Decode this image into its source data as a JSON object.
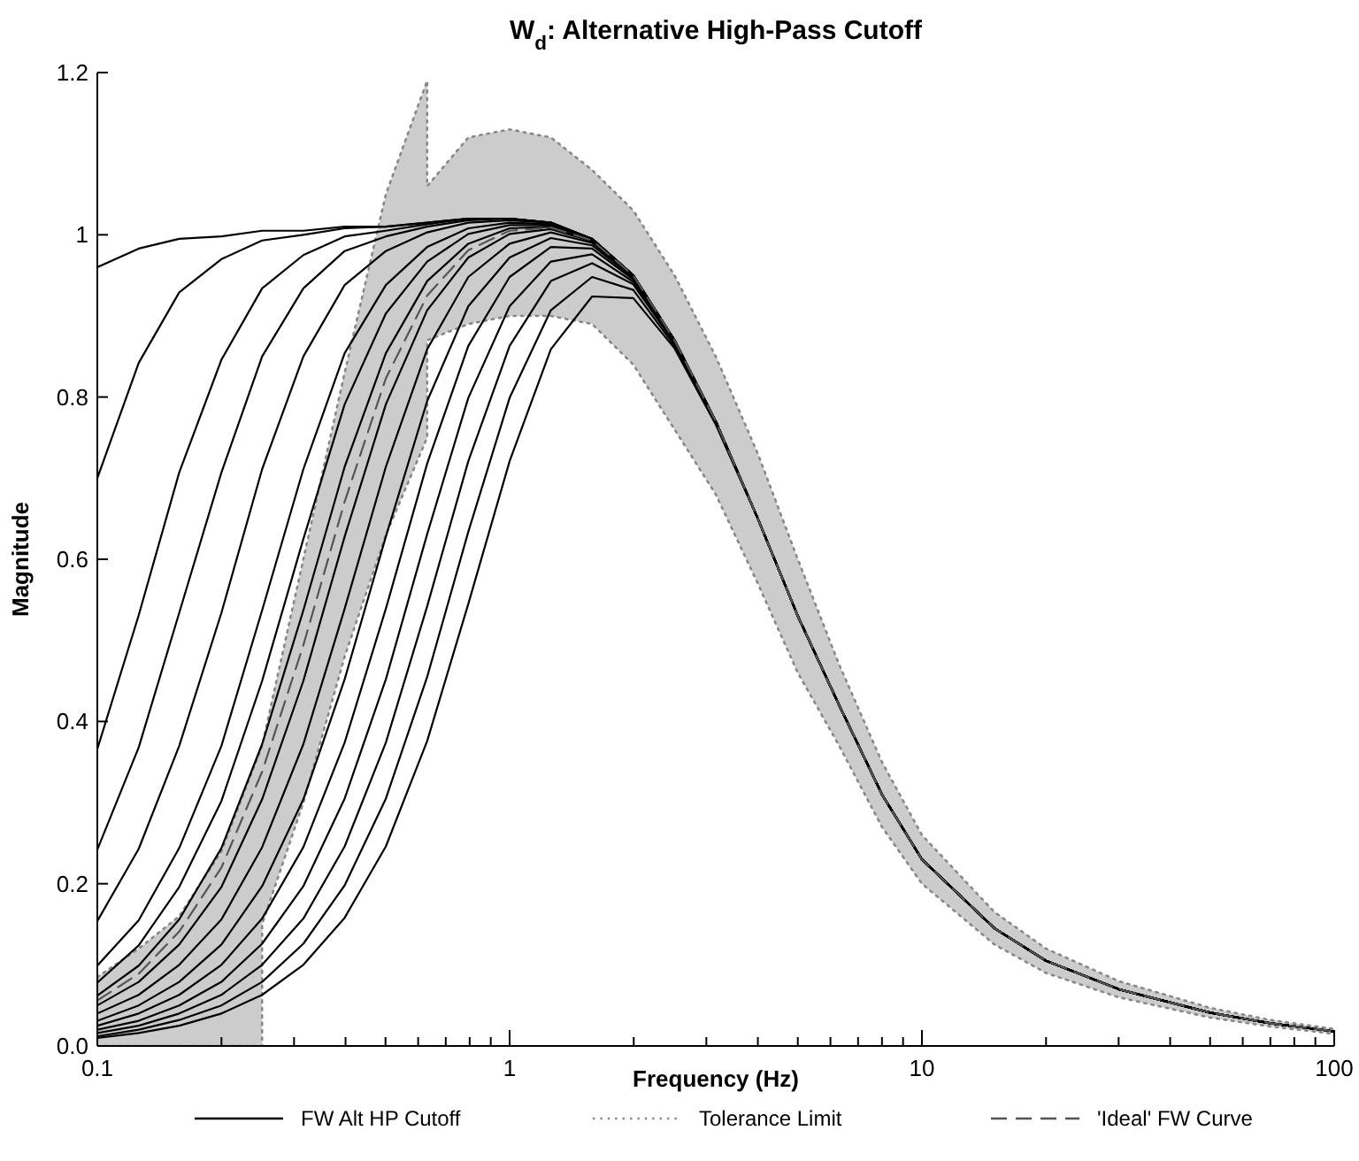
{
  "chart_data": {
    "type": "line",
    "title": "W$_{d}$: Alternative High-Pass Cutoff",
    "xlabel": "Frequency (Hz)",
    "ylabel": "Magnitude",
    "log": "x",
    "legend": "bottom",
    "grid": false,
    "xlim": [
      0.1,
      100
    ],
    "ylim": [
      0,
      1.2
    ],
    "xticks": [
      0.1,
      {
        "value": 0.2,
        "label": null
      },
      {
        "value": 0.3,
        "label": null
      },
      {
        "value": 0.4,
        "label": null
      },
      {
        "value": 0.5,
        "label": null
      },
      {
        "value": 0.6,
        "label": null
      },
      {
        "value": 0.7,
        "label": null
      },
      {
        "value": 0.8,
        "label": null
      },
      {
        "value": 0.9,
        "label": null
      },
      1,
      {
        "value": 2,
        "label": null
      },
      {
        "value": 3,
        "label": null
      },
      {
        "value": 4,
        "label": null
      },
      {
        "value": 5,
        "label": null
      },
      {
        "value": 6,
        "label": null
      },
      {
        "value": 7,
        "label": null
      },
      {
        "value": 8,
        "label": null
      },
      {
        "value": 9,
        "label": null
      },
      10,
      {
        "value": 20,
        "label": null
      },
      {
        "value": 30,
        "label": null
      },
      {
        "value": 40,
        "label": null
      },
      {
        "value": 50,
        "label": null
      },
      {
        "value": 60,
        "label": null
      },
      {
        "value": 70,
        "label": null
      },
      {
        "value": 80,
        "label": null
      },
      {
        "value": 90,
        "label": null
      },
      100
    ],
    "yticks": [
      {
        "value": 0,
        "label": "0.0"
      },
      0.2,
      0.4,
      0.6,
      0.8,
      1,
      1.2
    ],
    "x": [
      0.1,
      0.126,
      0.158,
      0.2,
      0.251,
      0.316,
      0.398,
      0.501,
      0.631,
      0.794,
      1,
      1.259,
      1.585,
      1.995,
      2.512,
      3.162,
      4,
      5,
      6.3,
      8,
      10,
      15,
      20,
      30,
      50,
      70,
      100
    ],
    "series": [
      {
        "name": "FW Alt HP Cutoff",
        "color": "#000000",
        "line_style": "solid",
        "values": [
          0.96,
          0.983,
          0.995,
          0.998,
          1.005,
          1.005,
          1.01,
          1.01,
          1.015,
          1.02,
          1.02,
          1.015,
          0.995,
          0.95,
          0.87,
          0.77,
          0.65,
          0.53,
          0.42,
          0.31,
          0.23,
          0.145,
          0.105,
          0.07,
          0.041,
          0.028,
          0.018
        ]
      },
      {
        "color": "#000000",
        "line_style": "solid",
        "values": [
          0.7,
          0.842,
          0.929,
          0.97,
          0.993,
          1.0,
          1.008,
          1.01,
          1.015,
          1.02,
          1.02,
          1.015,
          0.995,
          0.95,
          0.87,
          0.77,
          0.65,
          0.53,
          0.42,
          0.31,
          0.23,
          0.145,
          0.105,
          0.07,
          0.041,
          0.028,
          0.018
        ]
      },
      {
        "color": "#000000",
        "line_style": "solid",
        "values": [
          0.366,
          0.531,
          0.707,
          0.846,
          0.934,
          0.975,
          0.998,
          1.005,
          1.013,
          1.02,
          1.02,
          1.015,
          0.995,
          0.95,
          0.87,
          0.77,
          0.65,
          0.53,
          0.42,
          0.31,
          0.23,
          0.145,
          0.105,
          0.07,
          0.041,
          0.028,
          0.018
        ]
      },
      {
        "color": "#000000",
        "line_style": "solid",
        "values": [
          0.242,
          0.368,
          0.534,
          0.707,
          0.85,
          0.934,
          0.98,
          0.998,
          1.01,
          1.018,
          1.02,
          1.015,
          0.995,
          0.95,
          0.87,
          0.77,
          0.65,
          0.53,
          0.42,
          0.31,
          0.23,
          0.145,
          0.105,
          0.07,
          0.041,
          0.028,
          0.018
        ]
      },
      {
        "color": "#000000",
        "line_style": "solid",
        "values": [
          0.154,
          0.243,
          0.37,
          0.534,
          0.711,
          0.85,
          0.938,
          0.98,
          1.003,
          1.015,
          1.018,
          1.015,
          0.995,
          0.95,
          0.87,
          0.77,
          0.65,
          0.53,
          0.42,
          0.31,
          0.23,
          0.145,
          0.105,
          0.07,
          0.041,
          0.028,
          0.018
        ]
      },
      {
        "color": "#000000",
        "line_style": "solid",
        "values": [
          0.099,
          0.155,
          0.244,
          0.37,
          0.537,
          0.711,
          0.854,
          0.938,
          0.985,
          1.008,
          1.015,
          1.013,
          0.995,
          0.95,
          0.87,
          0.77,
          0.65,
          0.53,
          0.42,
          0.31,
          0.23,
          0.145,
          0.105,
          0.07,
          0.041,
          0.028,
          0.018
        ]
      },
      {
        "color": "#000000",
        "line_style": "solid",
        "values": [
          0.078,
          0.124,
          0.196,
          0.302,
          0.45,
          0.625,
          0.791,
          0.903,
          0.967,
          1.001,
          1.012,
          1.012,
          0.995,
          0.95,
          0.87,
          0.77,
          0.65,
          0.53,
          0.42,
          0.31,
          0.23,
          0.145,
          0.105,
          0.07,
          0.041,
          0.028,
          0.018
        ]
      },
      {
        "color": "#000000",
        "line_style": "solid",
        "values": [
          0.062,
          0.099,
          0.156,
          0.244,
          0.372,
          0.537,
          0.714,
          0.854,
          0.943,
          0.989,
          1.008,
          1.01,
          0.993,
          0.95,
          0.87,
          0.77,
          0.65,
          0.53,
          0.42,
          0.31,
          0.23,
          0.145,
          0.105,
          0.07,
          0.041,
          0.028,
          0.018
        ]
      },
      {
        "color": "#000000",
        "line_style": "solid",
        "values": [
          0.05,
          0.079,
          0.125,
          0.196,
          0.304,
          0.45,
          0.628,
          0.791,
          0.907,
          0.972,
          1.001,
          1.007,
          0.992,
          0.95,
          0.87,
          0.77,
          0.65,
          0.53,
          0.42,
          0.31,
          0.23,
          0.145,
          0.105,
          0.07,
          0.041,
          0.028,
          0.018
        ]
      },
      {
        "color": "#000000",
        "line_style": "solid",
        "values": [
          0.04,
          0.063,
          0.1,
          0.156,
          0.245,
          0.372,
          0.539,
          0.714,
          0.859,
          0.948,
          0.989,
          1.003,
          0.99,
          0.948,
          0.87,
          0.77,
          0.65,
          0.53,
          0.42,
          0.31,
          0.23,
          0.145,
          0.105,
          0.07,
          0.041,
          0.028,
          0.018
        ]
      },
      {
        "color": "#000000",
        "line_style": "solid",
        "values": [
          0.031,
          0.05,
          0.079,
          0.125,
          0.197,
          0.304,
          0.452,
          0.628,
          0.795,
          0.912,
          0.972,
          0.996,
          0.987,
          0.947,
          0.87,
          0.77,
          0.65,
          0.53,
          0.42,
          0.31,
          0.23,
          0.145,
          0.105,
          0.07,
          0.041,
          0.028,
          0.018
        ]
      },
      {
        "color": "#000000",
        "line_style": "solid",
        "values": [
          0.025,
          0.04,
          0.063,
          0.1,
          0.157,
          0.245,
          0.374,
          0.539,
          0.718,
          0.863,
          0.948,
          0.985,
          0.983,
          0.945,
          0.868,
          0.77,
          0.65,
          0.53,
          0.42,
          0.31,
          0.23,
          0.145,
          0.105,
          0.07,
          0.041,
          0.028,
          0.018
        ]
      },
      {
        "color": "#000000",
        "line_style": "solid",
        "values": [
          0.02,
          0.031,
          0.05,
          0.079,
          0.126,
          0.197,
          0.305,
          0.452,
          0.631,
          0.799,
          0.912,
          0.967,
          0.976,
          0.942,
          0.867,
          0.77,
          0.65,
          0.53,
          0.42,
          0.31,
          0.23,
          0.145,
          0.105,
          0.07,
          0.041,
          0.028,
          0.018
        ]
      },
      {
        "color": "#000000",
        "line_style": "solid",
        "values": [
          0.016,
          0.025,
          0.04,
          0.063,
          0.1,
          0.157,
          0.246,
          0.374,
          0.542,
          0.721,
          0.863,
          0.943,
          0.965,
          0.939,
          0.866,
          0.768,
          0.65,
          0.53,
          0.42,
          0.31,
          0.23,
          0.145,
          0.105,
          0.07,
          0.041,
          0.028,
          0.018
        ]
      },
      {
        "color": "#000000",
        "line_style": "solid",
        "values": [
          0.012,
          0.02,
          0.032,
          0.05,
          0.079,
          0.126,
          0.198,
          0.305,
          0.455,
          0.634,
          0.799,
          0.907,
          0.948,
          0.932,
          0.863,
          0.768,
          0.65,
          0.53,
          0.42,
          0.31,
          0.23,
          0.145,
          0.105,
          0.07,
          0.041,
          0.028,
          0.018
        ]
      },
      {
        "color": "#000000",
        "line_style": "solid",
        "values": [
          0.01,
          0.016,
          0.025,
          0.04,
          0.063,
          0.1,
          0.158,
          0.246,
          0.376,
          0.545,
          0.721,
          0.859,
          0.924,
          0.922,
          0.86,
          0.766,
          0.65,
          0.53,
          0.42,
          0.31,
          0.23,
          0.145,
          0.105,
          0.07,
          0.041,
          0.028,
          0.018
        ]
      },
      {
        "name": "Tolerance Limit",
        "color": "#888888",
        "line_style": "dotted",
        "x": [
          0.1,
          0.126,
          0.158,
          0.2,
          0.251,
          0.251,
          0.316,
          0.398,
          0.501,
          0.631,
          0.631,
          0.794,
          1,
          1.259,
          1.585,
          1.995,
          2.512,
          3.162,
          4,
          5,
          6.3,
          8,
          10,
          15,
          20,
          30,
          50,
          70,
          100
        ],
        "values": [
          0.085,
          0.12,
          0.16,
          0.24,
          0.37,
          0.37,
          0.6,
          0.83,
          1.05,
          1.19,
          1.06,
          1.12,
          1.13,
          1.12,
          1.08,
          1.03,
          0.95,
          0.85,
          0.73,
          0.6,
          0.47,
          0.35,
          0.26,
          0.165,
          0.12,
          0.08,
          0.047,
          0.032,
          0.021
        ]
      },
      {
        "color": "#888888",
        "line_style": "dotted",
        "x": [
          0.1,
          0.126,
          0.158,
          0.2,
          0.251,
          0.251,
          0.316,
          0.398,
          0.501,
          0.631,
          0.631,
          0.794,
          1,
          1.259,
          1.585,
          1.995,
          2.512,
          3.162,
          4,
          5,
          6.3,
          8,
          10,
          15,
          20,
          30,
          50,
          70,
          100
        ],
        "values": [
          0,
          0,
          0,
          0,
          0,
          0.15,
          0.3,
          0.48,
          0.63,
          0.75,
          0.87,
          0.89,
          0.9,
          0.9,
          0.89,
          0.84,
          0.76,
          0.68,
          0.57,
          0.46,
          0.37,
          0.27,
          0.2,
          0.125,
          0.09,
          0.06,
          0.035,
          0.024,
          0.015
        ]
      },
      {
        "name": "'Ideal' FW Curve",
        "color": "#555555",
        "line_style": "dashed",
        "x": [
          0.1,
          0.126,
          0.158,
          0.2,
          0.251,
          0.251,
          0.316,
          0.398,
          0.501,
          0.631,
          0.631,
          0.794,
          1,
          1.259,
          1.585,
          1.995,
          2.512,
          3.162,
          4,
          5,
          6.3,
          8,
          10,
          15,
          20,
          30,
          50,
          70,
          100
        ],
        "values": [
          0.056,
          0.089,
          0.141,
          0.22,
          0.338,
          0.338,
          0.494,
          0.671,
          0.823,
          0.925,
          0.925,
          0.981,
          1.005,
          1.009,
          0.993,
          0.95,
          0.87,
          0.77,
          0.65,
          0.53,
          0.42,
          0.31,
          0.23,
          0.145,
          0.105,
          0.07,
          0.041,
          0.028,
          0.018
        ],
        "lower": [
          0,
          0,
          0,
          0,
          0,
          0.15,
          0.3,
          0.48,
          0.63,
          0.75,
          0.87,
          0.89,
          0.9,
          0.9,
          0.89,
          0.84,
          0.76,
          0.68,
          0.57,
          0.46,
          0.37,
          0.27,
          0.2,
          0.125,
          0.09,
          0.06,
          0.035,
          0.024,
          0.015
        ],
        "upper": [
          0.085,
          0.12,
          0.16,
          0.24,
          0.37,
          0.37,
          0.6,
          0.83,
          1.05,
          1.19,
          1.06,
          1.12,
          1.13,
          1.12,
          1.08,
          1.03,
          0.95,
          0.85,
          0.73,
          0.6,
          0.47,
          0.35,
          0.26,
          0.165,
          0.12,
          0.08,
          0.047,
          0.032,
          0.021
        ]
      }
    ]
  }
}
